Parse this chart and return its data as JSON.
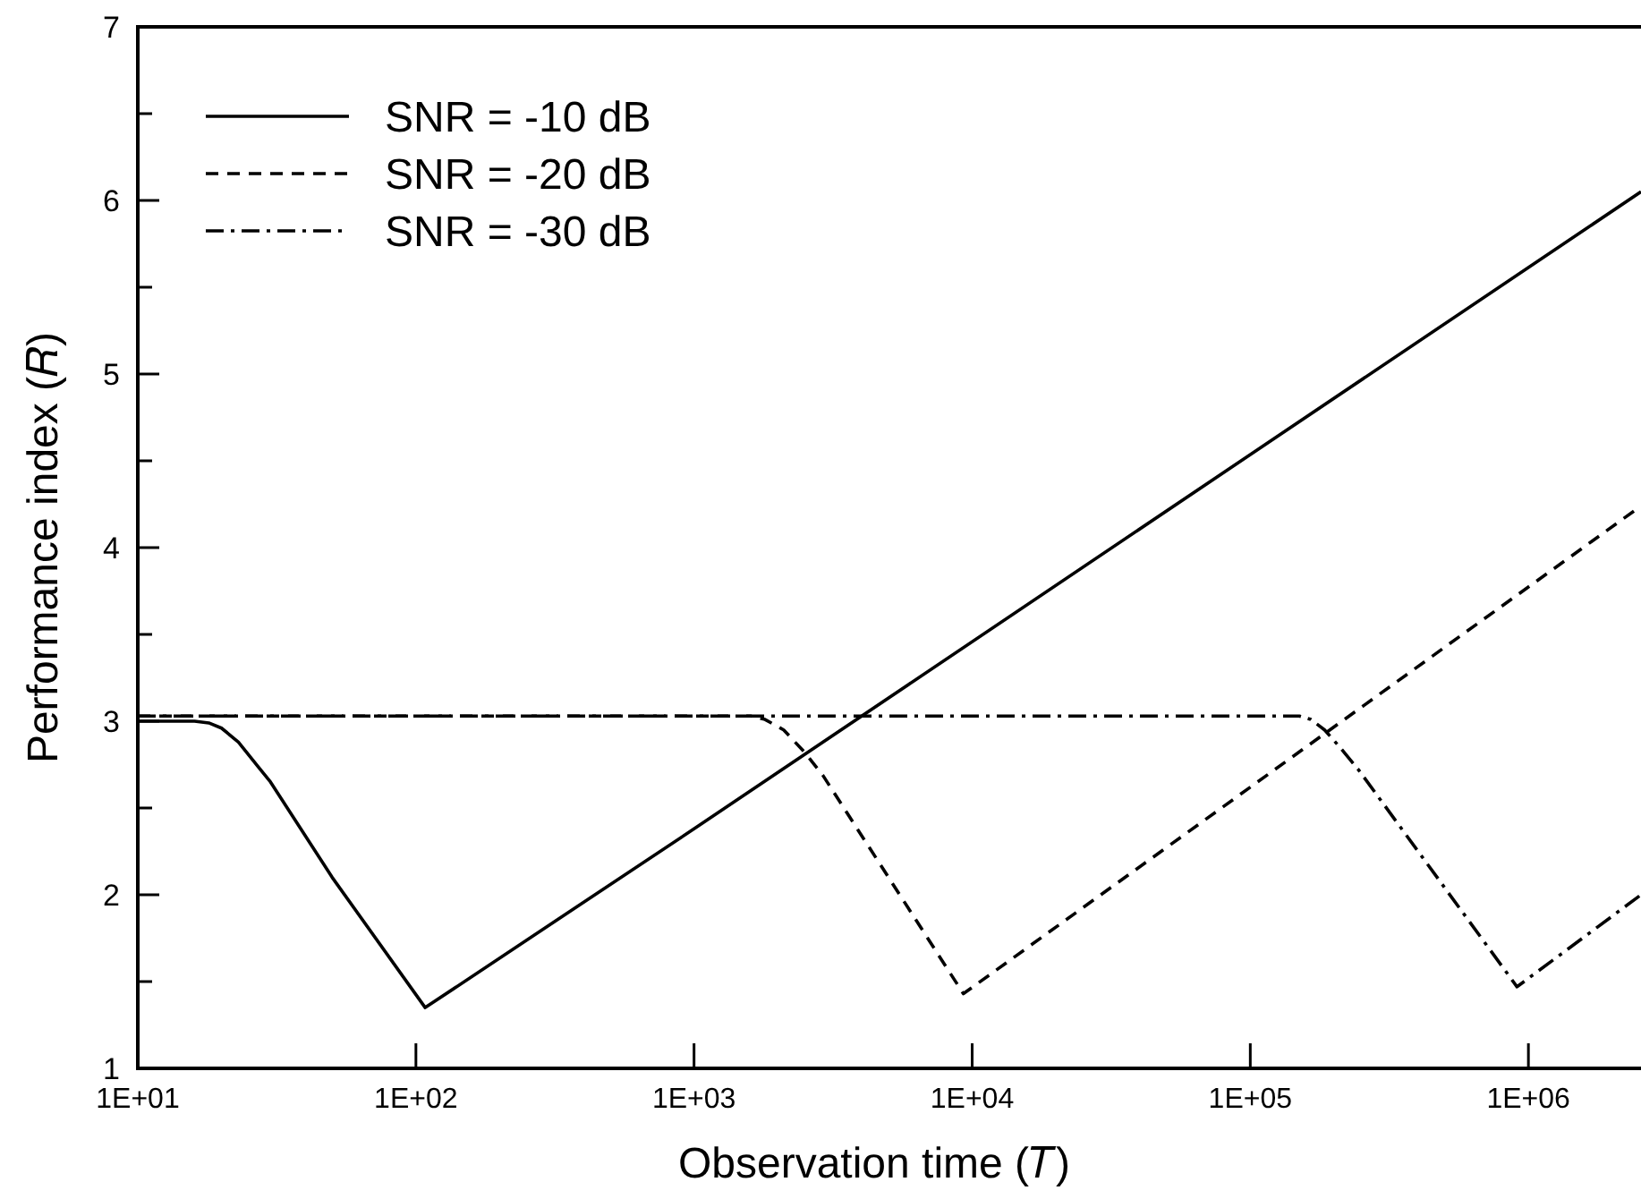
{
  "chart_data": {
    "type": "line",
    "xlabel": "Observation time (𝑇)",
    "ylabel": "Performance index (𝑅)",
    "log": "x",
    "xlim": [
      10,
      2540000
    ],
    "ylim": [
      1,
      7
    ],
    "xticks": [
      {
        "value": 10,
        "label": "1E+01"
      },
      {
        "value": 100,
        "label": "1E+02"
      },
      {
        "value": 1000,
        "label": "1E+03"
      },
      {
        "value": 10000,
        "label": "1E+04"
      },
      {
        "value": 100000,
        "label": "1E+05"
      },
      {
        "value": 1000000,
        "label": "1E+06"
      }
    ],
    "yticks": [
      1,
      {
        "value": 1.5,
        "label": null
      },
      2,
      {
        "value": 2.5,
        "label": null
      },
      3,
      {
        "value": 3.5,
        "label": null
      },
      4,
      {
        "value": 4.5,
        "label": null
      },
      5,
      {
        "value": 5.5,
        "label": null
      },
      6,
      {
        "value": 6.5,
        "label": null
      },
      7
    ],
    "grid": false,
    "legend": "top left",
    "marker": "none",
    "series": [
      {
        "name": "SNR = -10 dB",
        "color": "#000000",
        "line_style": "solid",
        "x": [
          10,
          16,
          18,
          20,
          23,
          27,
          30,
          50,
          108,
          1000,
          2540000
        ],
        "values": [
          3,
          3,
          2.99,
          2.96,
          2.88,
          2.74,
          2.65,
          2.1,
          1.35,
          2.38,
          6.05
        ]
      },
      {
        "name": "SNR = -20 dB",
        "color": "#000000",
        "line_style": "dashed",
        "x": [
          10,
          1600,
          1800,
          2100,
          2500,
          2900,
          9300,
          2540000
        ],
        "values": [
          3.03,
          3.03,
          3.01,
          2.95,
          2.82,
          2.69,
          1.43,
          4.24
        ]
      },
      {
        "name": "SNR = -30 dB",
        "color": "#000000",
        "line_style": "dashdot",
        "x": [
          10,
          150000,
          165000,
          185000,
          210000,
          245000,
          910000,
          2540000
        ],
        "values": [
          3.03,
          3.03,
          3.01,
          2.95,
          2.85,
          2.72,
          1.47,
          2.0
        ]
      }
    ]
  }
}
